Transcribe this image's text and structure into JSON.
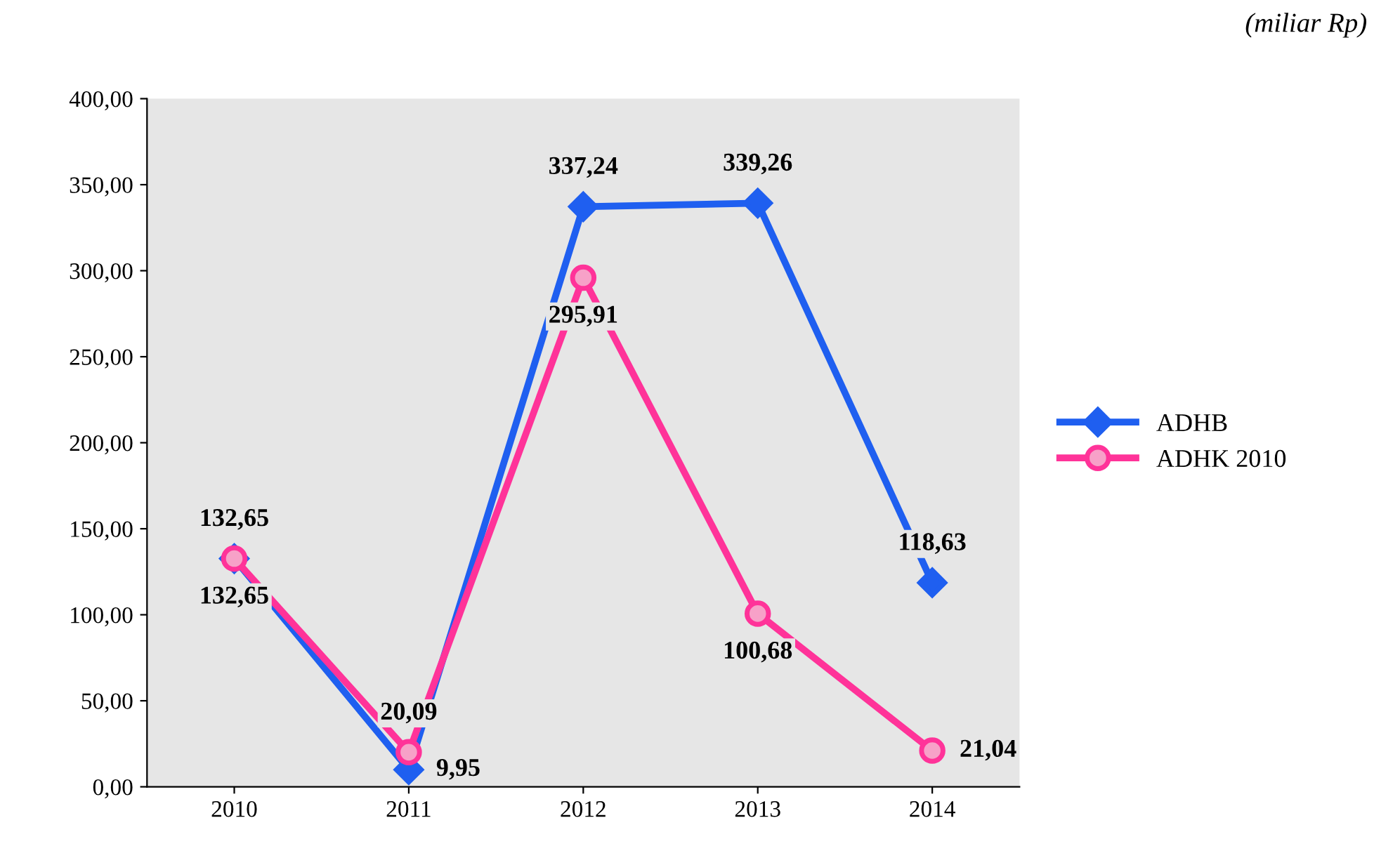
{
  "chart_data": {
    "type": "line",
    "categories": [
      "2010",
      "2011",
      "2012",
      "2013",
      "2014"
    ],
    "series": [
      {
        "name": "ADHB",
        "color": "#1f5ff0",
        "marker": "diamond",
        "values": [
          132.65,
          9.95,
          337.24,
          339.26,
          118.63
        ],
        "value_labels": [
          "132,65",
          "9,95",
          "337,24",
          "339,26",
          "118,63"
        ]
      },
      {
        "name": "ADHK 2010",
        "color": "#ff3399",
        "marker": "circle",
        "values": [
          132.65,
          20.09,
          295.91,
          100.68,
          21.04
        ],
        "value_labels": [
          "132,65",
          "20,09",
          "295,91",
          "100,68",
          "21,04"
        ]
      }
    ],
    "ylim": [
      0,
      400
    ],
    "yticks": [
      {
        "value": 0,
        "label": "0,00"
      },
      {
        "value": 50,
        "label": "50,00"
      },
      {
        "value": 100,
        "label": "100,00"
      },
      {
        "value": 150,
        "label": "150,00"
      },
      {
        "value": 200,
        "label": "200,00"
      },
      {
        "value": 250,
        "label": "250,00"
      },
      {
        "value": 300,
        "label": "300,00"
      },
      {
        "value": 350,
        "label": "350,00"
      },
      {
        "value": 400,
        "label": "400,00"
      }
    ],
    "annotations": [
      "(miliar Rp)"
    ],
    "legend": "right",
    "grid": false
  }
}
